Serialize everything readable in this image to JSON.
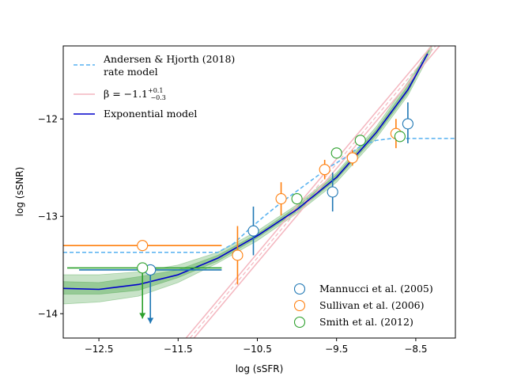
{
  "chart_data": {
    "type": "line",
    "xlabel": "log (sSFR)",
    "ylabel": "log (sSNR)",
    "xlim": [
      -12.95,
      -8.0
    ],
    "ylim": [
      -14.25,
      -11.25
    ],
    "xticks": [
      -12.5,
      -11.5,
      -10.5,
      -9.5,
      -8.5
    ],
    "xtick_labels": [
      "−12.5",
      "−11.5",
      "−10.5",
      "−9.5",
      "−8.5"
    ],
    "yticks": [
      -14,
      -13,
      -12
    ],
    "ytick_labels": [
      "−14",
      "−13",
      "−12"
    ],
    "colors": {
      "andersen": "#56b1f0",
      "beta": "#f4b6bf",
      "exponential": "#0000cc",
      "band": "#3a9a3a",
      "mannucci": "#1f77b4",
      "sullivan": "#ff7f0e",
      "smith": "#2ca02c"
    },
    "legend_upper": [
      {
        "key": "andersen",
        "label_lines": [
          "Andersen & Hjorth (2018)",
          " rate model"
        ],
        "style": "dashed"
      },
      {
        "key": "beta",
        "label": "β = −1.1",
        "sup": "+0.1",
        "sub": "−0.3",
        "style": "solid"
      },
      {
        "key": "exponential",
        "label": "Exponential model",
        "style": "solid"
      }
    ],
    "legend_lower": [
      {
        "key": "mannucci",
        "label": "Mannucci et al. (2005)"
      },
      {
        "key": "sullivan",
        "label": "Sullivan et al. (2006)"
      },
      {
        "key": "smith",
        "label": "Smith et al. (2012)"
      }
    ],
    "series": [
      {
        "key": "andersen",
        "name": "Andersen & Hjorth (2018) rate model",
        "x": [
          -12.95,
          -11.0,
          -10.8,
          -10.6,
          -10.4,
          -10.2,
          -10.0,
          -9.8,
          -9.6,
          -9.4,
          -9.2,
          -9.0,
          -8.8,
          -8.5,
          -8.0
        ],
        "y": [
          -13.37,
          -13.37,
          -13.28,
          -13.13,
          -12.99,
          -12.86,
          -12.74,
          -12.62,
          -12.5,
          -12.4,
          -12.28,
          -12.22,
          -12.2,
          -12.2,
          -12.2
        ]
      },
      {
        "key": "beta_center",
        "x": [
          -11.35,
          -8.25
        ],
        "y": [
          -14.25,
          -11.25
        ]
      },
      {
        "key": "beta_low",
        "x": [
          -11.4,
          -8.3
        ],
        "y": [
          -14.25,
          -11.25
        ]
      },
      {
        "key": "beta_high",
        "x": [
          -11.3,
          -8.2
        ],
        "y": [
          -14.25,
          -11.25
        ]
      },
      {
        "key": "exponential",
        "name": "Exponential model",
        "x": [
          -12.95,
          -12.5,
          -12.0,
          -11.5,
          -11.0,
          -10.5,
          -10.0,
          -9.5,
          -9.0,
          -8.6,
          -8.35
        ],
        "y": [
          -13.74,
          -13.75,
          -13.7,
          -13.6,
          -13.43,
          -13.2,
          -12.93,
          -12.6,
          -12.14,
          -11.7,
          -11.33
        ]
      }
    ],
    "band_outer": {
      "x": [
        -12.95,
        -12.5,
        -12.0,
        -11.5,
        -11.0,
        -10.5,
        -10.0,
        -9.5,
        -9.0,
        -8.6,
        -8.3
      ],
      "y_low": [
        -13.9,
        -13.88,
        -13.82,
        -13.68,
        -13.48,
        -13.25,
        -12.97,
        -12.65,
        -12.2,
        -11.76,
        -11.3
      ],
      "y_high": [
        -13.6,
        -13.6,
        -13.57,
        -13.5,
        -13.37,
        -13.15,
        -12.88,
        -12.55,
        -12.08,
        -11.62,
        -11.25
      ]
    },
    "band_inner": {
      "x": [
        -12.95,
        -12.5,
        -12.0,
        -11.5,
        -11.0,
        -10.5,
        -10.0,
        -9.5,
        -9.0,
        -8.6,
        -8.33
      ],
      "y_low": [
        -13.8,
        -13.8,
        -13.76,
        -13.63,
        -13.46,
        -13.22,
        -12.95,
        -12.62,
        -12.17,
        -11.73,
        -11.3
      ],
      "y_high": [
        -13.67,
        -13.68,
        -13.62,
        -13.55,
        -13.4,
        -13.18,
        -12.9,
        -12.57,
        -12.11,
        -11.66,
        -11.27
      ]
    },
    "points": [
      {
        "series": "mannucci",
        "x": -10.55,
        "y": -13.15,
        "yerr_low": 0.25,
        "yerr_high": 0.25
      },
      {
        "series": "mannucci",
        "x": -9.55,
        "y": -12.75,
        "yerr_low": 0.2,
        "yerr_high": 0.2
      },
      {
        "series": "mannucci",
        "x": -8.6,
        "y": -12.05,
        "yerr_low": 0.2,
        "yerr_high": 0.22
      },
      {
        "series": "mannucci",
        "x": -11.85,
        "y": -13.55,
        "xerr_low": 0.9,
        "xerr_high": 0.9,
        "upper_limit": true,
        "arrow_to": -14.1
      },
      {
        "series": "sullivan",
        "x": -11.95,
        "y": -13.3,
        "xerr_low": 1.0,
        "xerr_high": 1.0
      },
      {
        "series": "sullivan",
        "x": -10.75,
        "y": -13.4,
        "yerr_low": 0.3,
        "yerr_high": 0.3
      },
      {
        "series": "sullivan",
        "x": -10.2,
        "y": -12.82,
        "yerr_low": 0.17,
        "yerr_high": 0.17
      },
      {
        "series": "sullivan",
        "x": -9.65,
        "y": -12.52,
        "yerr_low": 0.1,
        "yerr_high": 0.1
      },
      {
        "series": "sullivan",
        "x": -9.3,
        "y": -12.4,
        "yerr_low": 0.08,
        "yerr_high": 0.08
      },
      {
        "series": "sullivan",
        "x": -8.75,
        "y": -12.15,
        "yerr_low": 0.15,
        "yerr_high": 0.15
      },
      {
        "series": "smith",
        "x": -11.95,
        "y": -13.53,
        "xerr_low": 0.95,
        "xerr_high": 1.0,
        "upper_limit": true,
        "arrow_to": -14.05
      },
      {
        "series": "smith",
        "x": -10.0,
        "y": -12.82,
        "yerr_low": 0.05,
        "yerr_high": 0.05
      },
      {
        "series": "smith",
        "x": -9.5,
        "y": -12.35,
        "yerr_low": 0.05,
        "yerr_high": 0.05
      },
      {
        "series": "smith",
        "x": -9.2,
        "y": -12.22,
        "yerr_low": 0.05,
        "yerr_high": 0.05
      },
      {
        "series": "smith",
        "x": -8.7,
        "y": -12.18,
        "yerr_low": 0.05,
        "yerr_high": 0.05
      }
    ]
  }
}
